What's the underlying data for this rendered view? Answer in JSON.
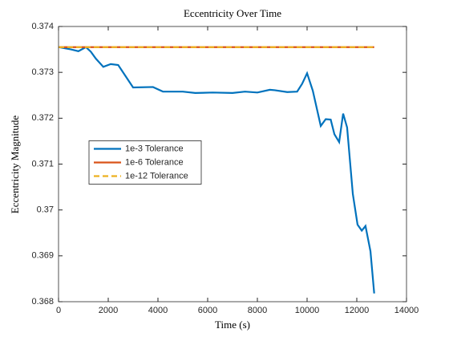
{
  "chart_data": {
    "type": "line",
    "title": "Eccentricity Over Time",
    "xlabel": "Time (s)",
    "ylabel": "Eccentricity Magnitude",
    "xlim": [
      0,
      14000
    ],
    "xticks": [
      0,
      2000,
      4000,
      6000,
      8000,
      10000,
      12000,
      14000
    ],
    "ylim": [
      0.368,
      0.374
    ],
    "yticks": [
      0.368,
      0.369,
      0.37,
      0.371,
      0.372,
      0.373,
      0.374
    ],
    "legend": "west",
    "series": [
      {
        "name": "1e-3 Tolerance",
        "color": "#0072bd",
        "linestyle": "solid",
        "x": [
          0,
          500,
          800,
          1100,
          1300,
          1500,
          1800,
          2100,
          2400,
          3000,
          3800,
          4200,
          5000,
          5500,
          6200,
          7000,
          7500,
          8000,
          8500,
          8700,
          9200,
          9600,
          9800,
          10000,
          10230,
          10550,
          10750,
          10950,
          11100,
          11290,
          11450,
          11610,
          11840,
          12030,
          12200,
          12350,
          12550,
          12700
        ],
        "values": [
          0.37355,
          0.3735,
          0.37346,
          0.37355,
          0.37345,
          0.3733,
          0.37312,
          0.37318,
          0.37316,
          0.37267,
          0.37268,
          0.37258,
          0.37258,
          0.37255,
          0.37256,
          0.37255,
          0.37258,
          0.37256,
          0.37262,
          0.37261,
          0.37257,
          0.37258,
          0.37275,
          0.37298,
          0.3726,
          0.37183,
          0.37198,
          0.37197,
          0.37165,
          0.37148,
          0.3721,
          0.3718,
          0.37035,
          0.36968,
          0.36955,
          0.36965,
          0.3691,
          0.36818
        ]
      },
      {
        "name": "1e-6 Tolerance",
        "color": "#d95319",
        "linestyle": "solid",
        "x": [
          0,
          12700
        ],
        "values": [
          0.37355,
          0.37355
        ]
      },
      {
        "name": "1e-12 Tolerance",
        "color": "#edb120",
        "linestyle": "dashed",
        "x": [
          0,
          12700
        ],
        "values": [
          0.37355,
          0.37355
        ]
      }
    ]
  }
}
